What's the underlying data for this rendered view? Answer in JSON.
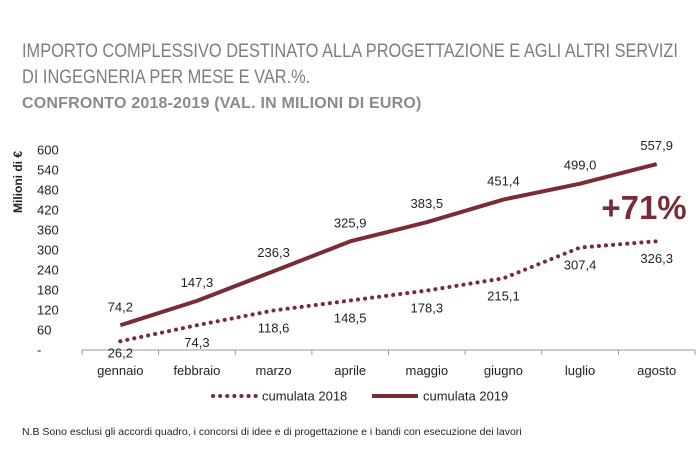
{
  "title_lines": [
    "IMPORTO COMPLESSIVO DESTINATO ALLA PROGETTAZIONE E AGLI ALTRI SERVIZI",
    "DI INGEGNERIA PER MESE E VAR.%."
  ],
  "subtitle": "CONFRONTO 2018-2019 (VAL. IN MILIONI DI EURO)",
  "footnote": "N.B Sono esclusi gli accordi quadro, i concorsi di idee e di progettazione e i bandi con esecuzione dei lavori",
  "colors": {
    "series": "#7a2c36",
    "axis": "#999999",
    "text": "#231f20"
  },
  "chart_data": {
    "type": "line",
    "title": "IMPORTO COMPLESSIVO DESTINATO ALLA PROGETTAZIONE E AGLI ALTRI SERVIZI DI INGEGNERIA PER MESE E VAR.%.",
    "subtitle": "CONFRONTO 2018-2019 (VAL. IN MILIONI DI EURO)",
    "xlabel": "",
    "ylabel": "Milioni di €",
    "ylim": [
      0,
      600
    ],
    "y_ticks": [
      "-",
      "60",
      "120",
      "180",
      "240",
      "300",
      "360",
      "420",
      "480",
      "540",
      "600"
    ],
    "grid": false,
    "legend_position": "bottom",
    "categories": [
      "gennaio",
      "febbraio",
      "marzo",
      "aprile",
      "maggio",
      "giugno",
      "luglio",
      "agosto"
    ],
    "series": [
      {
        "name": "cumulata 2018",
        "style": "dotted",
        "values": [
          26.2,
          74.3,
          118.6,
          148.5,
          178.3,
          215.1,
          307.4,
          326.3
        ],
        "labels": [
          "26,2",
          "74,3",
          "118,6",
          "148,5",
          "178,3",
          "215,1",
          "307,4",
          "326,3"
        ]
      },
      {
        "name": "cumulata 2019",
        "style": "solid",
        "values": [
          74.2,
          147.3,
          236.3,
          325.9,
          383.5,
          451.4,
          499.0,
          557.9
        ],
        "labels": [
          "74,2",
          "147,3",
          "236,3",
          "325,9",
          "383,5",
          "451,4",
          "499,0",
          "557,9"
        ]
      }
    ],
    "annotation": "+71%"
  }
}
